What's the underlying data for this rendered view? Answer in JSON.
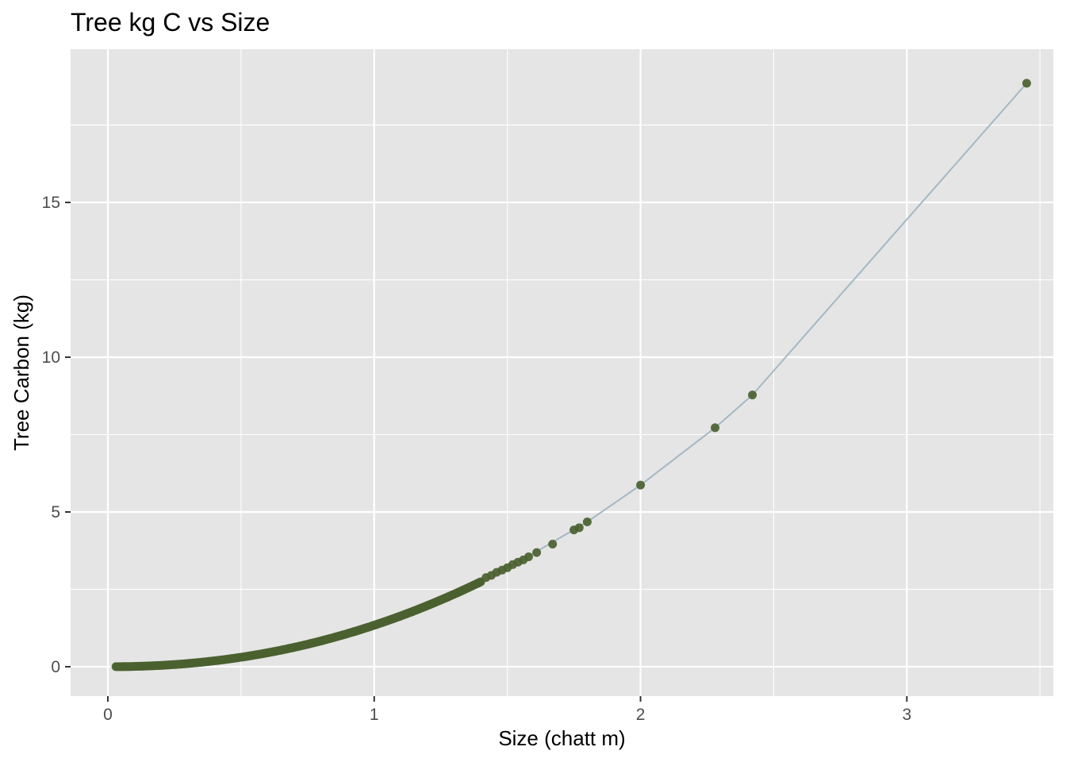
{
  "chart_data": {
    "type": "scatter",
    "title": "Tree kg C vs Size",
    "xlabel": "Size (chatt m)",
    "ylabel": "Tree Carbon (kg)",
    "xlim": [
      -0.14,
      3.55
    ],
    "ylim": [
      -0.95,
      19.95
    ],
    "x_ticks": [
      0,
      1,
      2,
      3
    ],
    "y_ticks": [
      0,
      5,
      10,
      15
    ],
    "x_minor": [
      0.5,
      1.5,
      2.5,
      3.5
    ],
    "y_minor": [
      2.5,
      7.5,
      12.5,
      17.5
    ],
    "grid": true,
    "legend": "none",
    "colors": {
      "panel": "#e5e5e5",
      "grid": "#ffffff",
      "point": "#4b6130",
      "line": "#a3b8c4",
      "axis_text": "#4d4d4d",
      "tick": "#333333"
    },
    "model": {
      "form": "y = a * x^b",
      "a": 1.34,
      "b": 2.13,
      "x_min": 0.03,
      "x_max": 1.4,
      "n": 260
    },
    "trend_line": {
      "x": [
        0.03,
        0.2,
        0.4,
        0.6,
        0.8,
        1.0,
        1.2,
        1.4,
        1.6,
        1.8,
        2.0,
        2.28,
        2.42,
        3.45
      ],
      "y": [
        0.0,
        0.05,
        0.2,
        0.45,
        0.83,
        1.34,
        1.98,
        2.75,
        3.67,
        4.68,
        5.87,
        7.72,
        8.78,
        18.85
      ]
    },
    "points": {
      "x": [
        1.42,
        1.44,
        1.46,
        1.48,
        1.5,
        1.52,
        1.54,
        1.56,
        1.58,
        1.61,
        1.67,
        1.75,
        1.77,
        1.8,
        2.0,
        2.28,
        2.42,
        3.45
      ],
      "y": [
        2.88,
        2.95,
        3.05,
        3.12,
        3.2,
        3.3,
        3.38,
        3.45,
        3.55,
        3.69,
        3.96,
        4.42,
        4.49,
        4.68,
        5.87,
        7.72,
        8.78,
        18.85
      ]
    }
  }
}
